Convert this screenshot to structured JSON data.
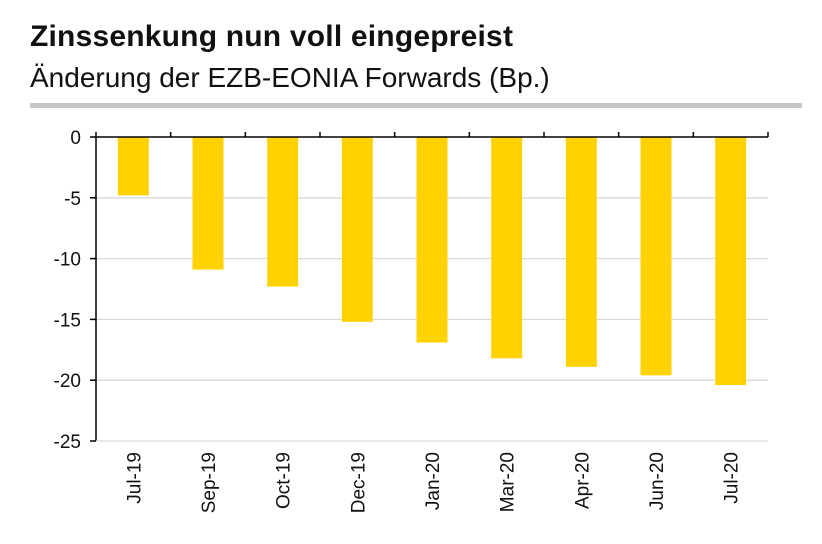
{
  "header": {
    "title": "Zinssenkung nun voll eingepreist",
    "subtitle": "Änderung der EZB-EONIA Forwards (Bp.)"
  },
  "colors": {
    "bar": "#FFD200",
    "grid": "#d9d9d9",
    "axis": "#000000",
    "rule": "#c6c6c6"
  },
  "chart_data": {
    "type": "bar",
    "categories": [
      "Jul-19",
      "Sep-19",
      "Oct-19",
      "Dec-19",
      "Jan-20",
      "Mar-20",
      "Apr-20",
      "Jun-20",
      "Jul-20"
    ],
    "values": [
      -4.8,
      -10.9,
      -12.3,
      -15.2,
      -16.9,
      -18.2,
      -18.9,
      -19.6,
      -20.4
    ],
    "ylim": [
      -25,
      0
    ],
    "yticks": [
      0,
      -5,
      -10,
      -15,
      -20,
      -25
    ],
    "ytick_labels": [
      "0",
      "-5",
      "-10",
      "-15",
      "-20",
      "-25"
    ],
    "grid": true,
    "legend": "none"
  }
}
